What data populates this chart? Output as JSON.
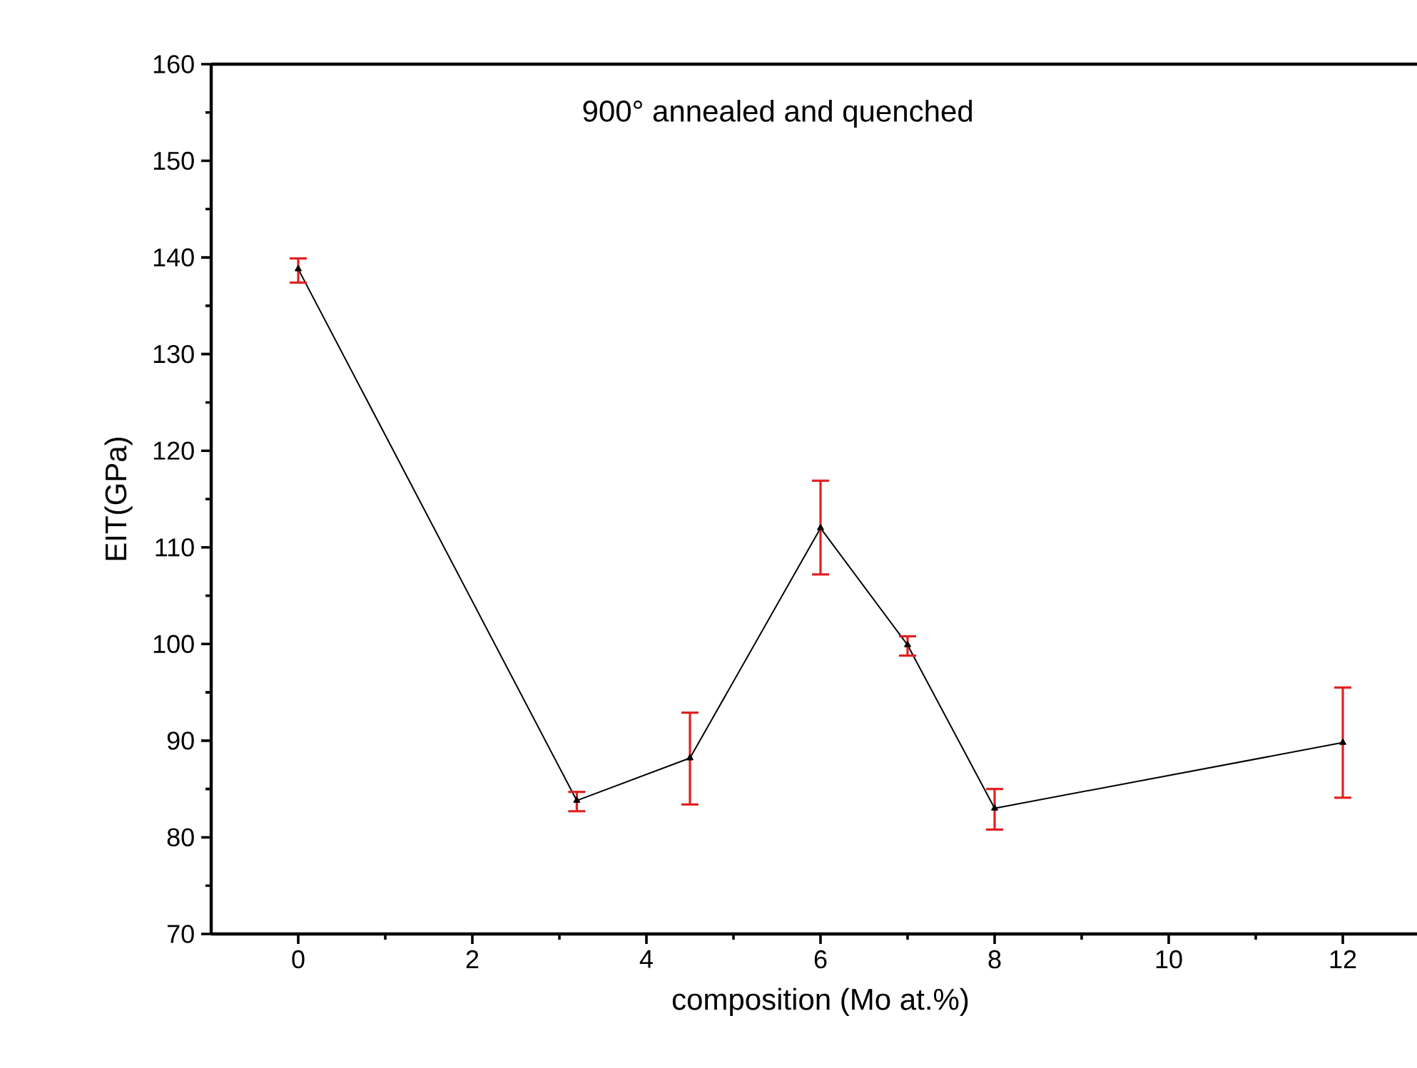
{
  "chart_data": {
    "type": "line",
    "xlabel": "composition (Mo at.%)",
    "ylabel": "EIT(GPa)",
    "annotations": [
      "900° annealed and quenched"
    ],
    "x": [
      0,
      3.2,
      4.5,
      6,
      7,
      8,
      12
    ],
    "series": [
      {
        "color": "#000000",
        "values": [
          138.8,
          83.8,
          88.2,
          112.0,
          99.9,
          83.0,
          89.8
        ],
        "errors": [
          [
            137.4,
            139.9
          ],
          [
            82.7,
            84.7
          ],
          [
            83.4,
            92.9
          ],
          [
            107.2,
            116.9
          ],
          [
            98.8,
            100.8
          ],
          [
            80.8,
            85.0
          ],
          [
            84.1,
            95.5
          ]
        ]
      }
    ],
    "xlim": [
      -1,
      13
    ],
    "xticks": [
      0,
      2,
      4,
      6,
      8,
      10,
      12
    ],
    "ylim": [
      70,
      160
    ],
    "yticks": [
      70,
      80,
      90,
      100,
      110,
      120,
      130,
      140,
      150,
      160
    ],
    "marker": "triangle",
    "line_style": "solid",
    "grid": false
  }
}
